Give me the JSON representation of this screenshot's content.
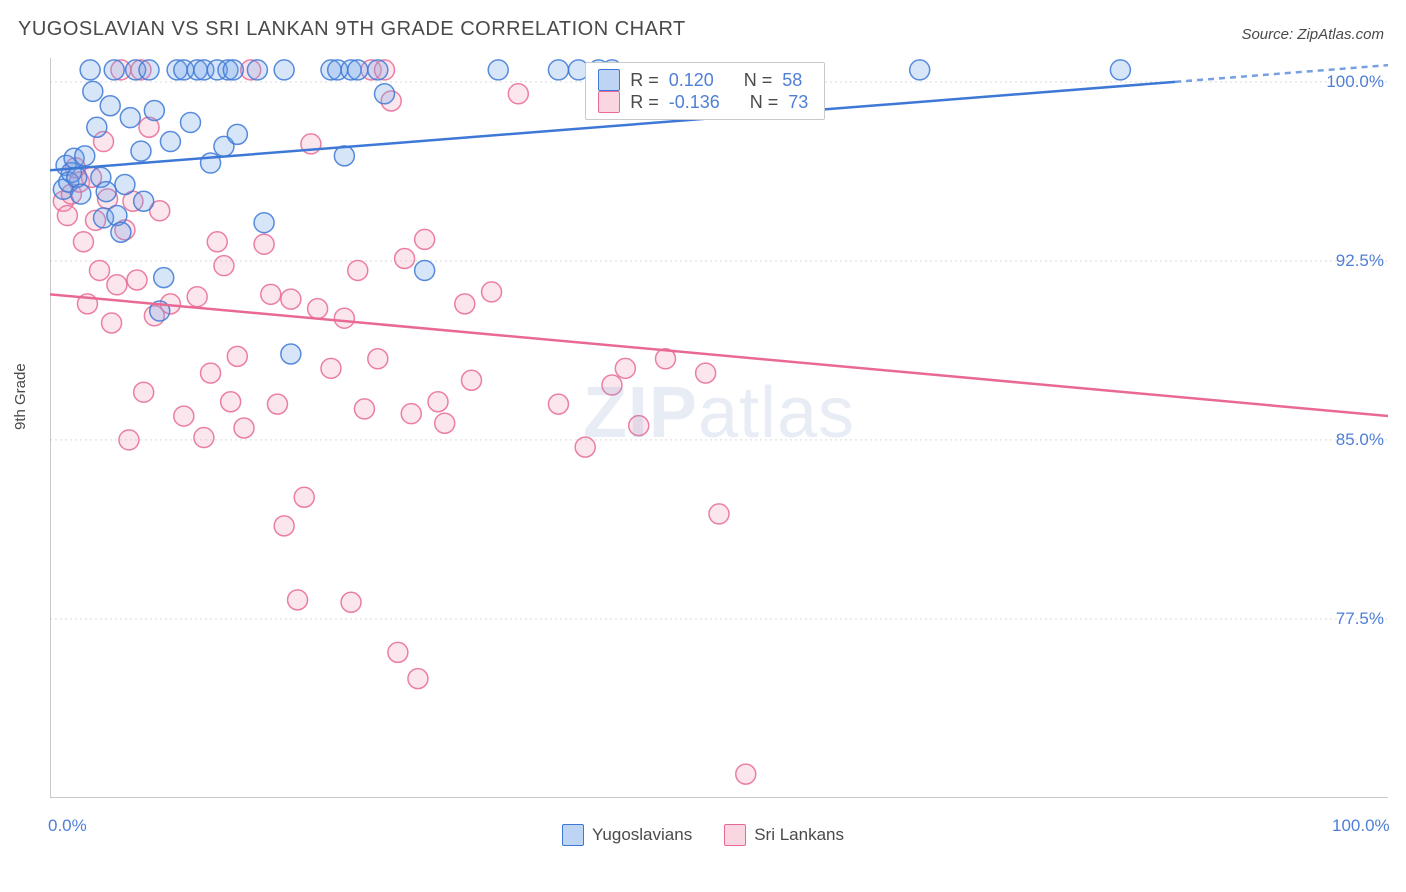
{
  "title": "YUGOSLAVIAN VS SRI LANKAN 9TH GRADE CORRELATION CHART",
  "source_label": "Source: ZipAtlas.com",
  "y_axis_label": "9th Grade",
  "watermark": {
    "bold": "ZIP",
    "rest": "atlas"
  },
  "chart": {
    "type": "scatter",
    "background_color": "#ffffff",
    "grid_color": "#d9d9d9",
    "axis_color": "#b7b7b7",
    "label_color": "#4f7fd6",
    "xlim": [
      0,
      100
    ],
    "ylim": [
      70,
      101
    ],
    "x_ticks": [
      0,
      8.33,
      16.67,
      25,
      33.33,
      41.67,
      50,
      58.33,
      66.67,
      75,
      83.33,
      91.67,
      100
    ],
    "x_tick_labels": {
      "0": "0.0%",
      "100": "100.0%"
    },
    "y_ticks": [
      77.5,
      85.0,
      92.5,
      100.0
    ],
    "y_tick_labels": [
      "77.5%",
      "85.0%",
      "92.5%",
      "100.0%"
    ],
    "marker_radius": 10,
    "marker_fill_opacity": 0.28,
    "marker_stroke_width": 1.5,
    "trend_line_width": 2.5,
    "trend_dash_pattern": "6 5"
  },
  "series": {
    "yugoslavians": {
      "label": "Yugoslavians",
      "color_stroke": "#3d78d6",
      "color_fill": "#6fa0e6",
      "r_value": "0.120",
      "n_value": "58",
      "trend": {
        "x1": 0,
        "y1": 96.3,
        "x2": 100,
        "y2": 100.7
      },
      "points": [
        [
          1,
          95.5
        ],
        [
          1.2,
          96.5
        ],
        [
          1.4,
          95.8
        ],
        [
          1.6,
          96.2
        ],
        [
          1.8,
          96.8
        ],
        [
          2,
          96.0
        ],
        [
          2.3,
          95.3
        ],
        [
          2.6,
          96.9
        ],
        [
          3,
          100.5
        ],
        [
          3.2,
          99.6
        ],
        [
          3.5,
          98.1
        ],
        [
          3.8,
          96.0
        ],
        [
          4,
          94.3
        ],
        [
          4.2,
          95.4
        ],
        [
          4.5,
          99.0
        ],
        [
          4.8,
          100.5
        ],
        [
          5,
          94.4
        ],
        [
          5.3,
          93.7
        ],
        [
          5.6,
          95.7
        ],
        [
          6,
          98.5
        ],
        [
          6.4,
          100.5
        ],
        [
          6.8,
          97.1
        ],
        [
          7,
          95.0
        ],
        [
          7.4,
          100.5
        ],
        [
          7.8,
          98.8
        ],
        [
          8.2,
          90.4
        ],
        [
          8.5,
          91.8
        ],
        [
          9,
          97.5
        ],
        [
          9.5,
          100.5
        ],
        [
          10,
          100.5
        ],
        [
          10.5,
          98.3
        ],
        [
          11,
          100.5
        ],
        [
          11.5,
          100.5
        ],
        [
          12,
          96.6
        ],
        [
          12.5,
          100.5
        ],
        [
          13,
          97.3
        ],
        [
          13.3,
          100.5
        ],
        [
          13.7,
          100.5
        ],
        [
          14,
          97.8
        ],
        [
          15.5,
          100.5
        ],
        [
          16,
          94.1
        ],
        [
          17.5,
          100.5
        ],
        [
          18,
          88.6
        ],
        [
          21,
          100.5
        ],
        [
          21.5,
          100.5
        ],
        [
          22,
          96.9
        ],
        [
          22.5,
          100.5
        ],
        [
          23,
          100.5
        ],
        [
          24.5,
          100.5
        ],
        [
          25,
          99.5
        ],
        [
          28,
          92.1
        ],
        [
          33.5,
          100.5
        ],
        [
          38,
          100.5
        ],
        [
          39.5,
          100.5
        ],
        [
          41,
          100.5
        ],
        [
          42,
          100.5
        ],
        [
          65,
          100.5
        ],
        [
          80,
          100.5
        ]
      ]
    },
    "srilankans": {
      "label": "Sri Lankans",
      "color_stroke": "#e86a94",
      "color_fill": "#f4a5bd",
      "r_value": "-0.136",
      "n_value": "73",
      "trend": {
        "x1": 0,
        "y1": 91.1,
        "x2": 100,
        "y2": 86.0
      },
      "points": [
        [
          1,
          95.0
        ],
        [
          1.3,
          94.4
        ],
        [
          1.6,
          95.3
        ],
        [
          1.9,
          96.4
        ],
        [
          2.2,
          95.8
        ],
        [
          2.5,
          93.3
        ],
        [
          2.8,
          90.7
        ],
        [
          3.1,
          96.0
        ],
        [
          3.4,
          94.2
        ],
        [
          3.7,
          92.1
        ],
        [
          4,
          97.5
        ],
        [
          4.3,
          95.1
        ],
        [
          4.6,
          89.9
        ],
        [
          5,
          91.5
        ],
        [
          5.3,
          100.5
        ],
        [
          5.6,
          93.8
        ],
        [
          5.9,
          85.0
        ],
        [
          6.2,
          95.0
        ],
        [
          6.5,
          91.7
        ],
        [
          6.8,
          100.5
        ],
        [
          7,
          87.0
        ],
        [
          7.4,
          98.1
        ],
        [
          7.8,
          90.2
        ],
        [
          8.2,
          94.6
        ],
        [
          9,
          90.7
        ],
        [
          10,
          86.0
        ],
        [
          11,
          91.0
        ],
        [
          11.5,
          85.1
        ],
        [
          12,
          87.8
        ],
        [
          12.5,
          93.3
        ],
        [
          13,
          92.3
        ],
        [
          13.5,
          86.6
        ],
        [
          14,
          88.5
        ],
        [
          14.5,
          85.5
        ],
        [
          15,
          100.5
        ],
        [
          16,
          93.2
        ],
        [
          16.5,
          91.1
        ],
        [
          17,
          86.5
        ],
        [
          17.5,
          81.4
        ],
        [
          18,
          90.9
        ],
        [
          18.5,
          78.3
        ],
        [
          19,
          82.6
        ],
        [
          19.5,
          97.4
        ],
        [
          20,
          90.5
        ],
        [
          21,
          88.0
        ],
        [
          22,
          90.1
        ],
        [
          22.5,
          78.2
        ],
        [
          23,
          92.1
        ],
        [
          23.5,
          86.3
        ],
        [
          24,
          100.5
        ],
        [
          24.5,
          88.4
        ],
        [
          25,
          100.5
        ],
        [
          25.5,
          99.2
        ],
        [
          26,
          76.1
        ],
        [
          26.5,
          92.6
        ],
        [
          27,
          86.1
        ],
        [
          27.5,
          75.0
        ],
        [
          28,
          93.4
        ],
        [
          29,
          86.6
        ],
        [
          29.5,
          85.7
        ],
        [
          31,
          90.7
        ],
        [
          31.5,
          87.5
        ],
        [
          33,
          91.2
        ],
        [
          35,
          99.5
        ],
        [
          38,
          86.5
        ],
        [
          40,
          84.7
        ],
        [
          42,
          87.3
        ],
        [
          43,
          88.0
        ],
        [
          44,
          85.6
        ],
        [
          46,
          88.4
        ],
        [
          49,
          87.8
        ],
        [
          50,
          81.9
        ],
        [
          52,
          71.0
        ]
      ]
    }
  },
  "legend_box": {
    "r_prefix": "R = ",
    "n_prefix": "N = "
  }
}
